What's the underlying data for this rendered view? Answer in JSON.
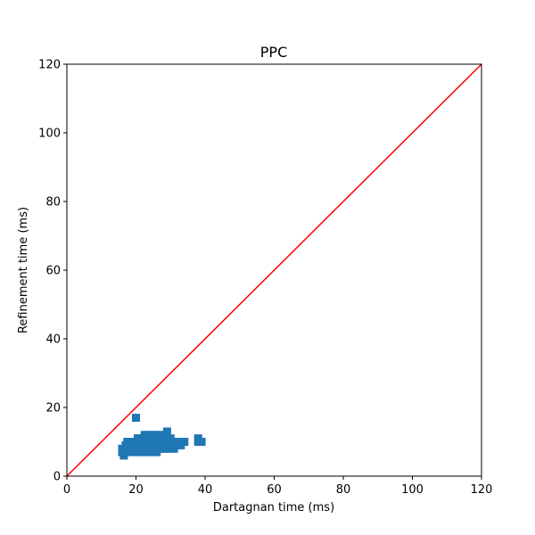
{
  "chart_data": {
    "type": "scatter",
    "title": "PPC",
    "xlabel": "Dartagnan time (ms)",
    "ylabel": "Refinement time (ms)",
    "xlim": [
      0,
      120
    ],
    "ylim": [
      0,
      120
    ],
    "xticks": [
      0,
      20,
      40,
      60,
      80,
      100,
      120
    ],
    "yticks": [
      0,
      20,
      40,
      60,
      80,
      100,
      120
    ],
    "grid": false,
    "marker": "square",
    "series": [
      {
        "color": "#1f77b4",
        "points": [
          [
            20,
            17
          ],
          [
            16,
            7
          ],
          [
            16,
            8
          ],
          [
            16.5,
            6
          ],
          [
            17,
            7
          ],
          [
            17,
            8
          ],
          [
            17,
            9
          ],
          [
            17.5,
            10
          ],
          [
            18,
            7
          ],
          [
            18,
            8
          ],
          [
            18,
            9
          ],
          [
            18.5,
            10
          ],
          [
            19,
            7
          ],
          [
            19,
            8
          ],
          [
            19,
            9
          ],
          [
            19,
            10
          ],
          [
            19.5,
            8
          ],
          [
            20,
            7
          ],
          [
            20,
            8
          ],
          [
            20,
            9
          ],
          [
            20,
            10
          ],
          [
            20.5,
            11
          ],
          [
            21,
            7
          ],
          [
            21,
            8
          ],
          [
            21,
            9
          ],
          [
            21,
            10
          ],
          [
            21,
            11
          ],
          [
            21.5,
            8
          ],
          [
            22,
            7
          ],
          [
            22,
            8
          ],
          [
            22,
            9
          ],
          [
            22,
            10
          ],
          [
            22,
            11
          ],
          [
            22.5,
            12
          ],
          [
            23,
            7
          ],
          [
            23,
            8
          ],
          [
            23,
            9
          ],
          [
            23,
            10
          ],
          [
            23,
            11
          ],
          [
            23,
            12
          ],
          [
            23.5,
            9
          ],
          [
            24,
            7
          ],
          [
            24,
            8
          ],
          [
            24,
            9
          ],
          [
            24,
            10
          ],
          [
            24,
            11
          ],
          [
            24,
            12
          ],
          [
            24.5,
            10
          ],
          [
            25,
            7
          ],
          [
            25,
            8
          ],
          [
            25,
            9
          ],
          [
            25,
            10
          ],
          [
            25,
            11
          ],
          [
            25,
            12
          ],
          [
            25.5,
            11
          ],
          [
            26,
            7
          ],
          [
            26,
            8
          ],
          [
            26,
            9
          ],
          [
            26,
            10
          ],
          [
            26,
            11
          ],
          [
            26,
            12
          ],
          [
            26.5,
            9
          ],
          [
            27,
            8
          ],
          [
            27,
            9
          ],
          [
            27,
            10
          ],
          [
            27,
            11
          ],
          [
            27,
            12
          ],
          [
            27.5,
            10
          ],
          [
            28,
            8
          ],
          [
            28,
            9
          ],
          [
            28,
            10
          ],
          [
            28,
            11
          ],
          [
            28.5,
            12
          ],
          [
            29,
            13
          ],
          [
            29,
            8
          ],
          [
            29,
            9
          ],
          [
            29,
            10
          ],
          [
            29,
            11
          ],
          [
            29.5,
            9
          ],
          [
            30,
            8
          ],
          [
            30,
            9
          ],
          [
            30,
            10
          ],
          [
            30,
            11
          ],
          [
            31,
            8
          ],
          [
            31,
            9
          ],
          [
            31,
            10
          ],
          [
            32,
            9
          ],
          [
            32,
            10
          ],
          [
            33,
            9
          ],
          [
            33,
            10
          ],
          [
            34,
            10
          ],
          [
            38,
            10
          ],
          [
            38,
            11
          ],
          [
            39,
            10
          ]
        ]
      }
    ],
    "reference_line": {
      "from": [
        0,
        0
      ],
      "to": [
        120,
        120
      ],
      "color": "#ff0000"
    }
  }
}
